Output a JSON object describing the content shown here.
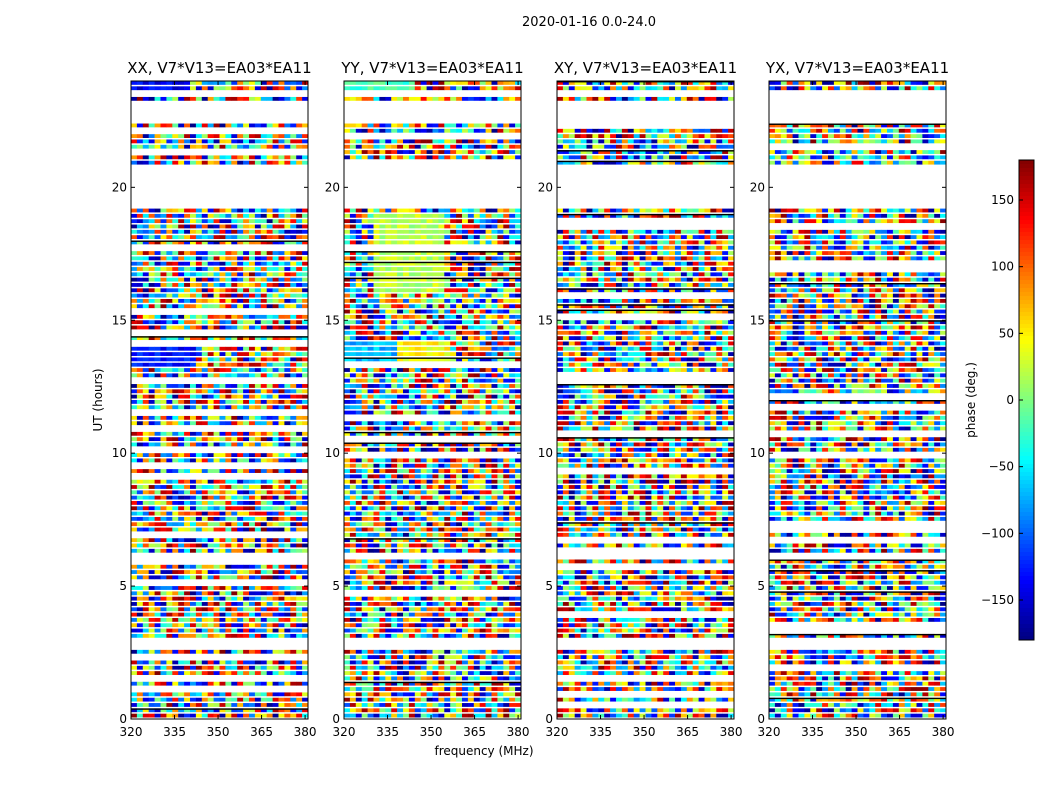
{
  "chart_data": {
    "type": "heatmap",
    "suptitle": "2020-01-16 0.0-24.0",
    "xlabel": "frequency (MHz)",
    "ylabel": "UT (hours)",
    "xlim": [
      320,
      381
    ],
    "ylim": [
      0,
      24
    ],
    "xticks": [
      320,
      335,
      350,
      365,
      380
    ],
    "yticks": [
      0,
      5,
      10,
      15,
      20
    ],
    "colorbar": {
      "label": "phase (deg.)",
      "range": [
        -180,
        180
      ],
      "ticks": [
        150,
        100,
        50,
        0,
        -50,
        -100,
        -150
      ],
      "tick_labels": [
        "150",
        "100",
        "50",
        "0",
        "−50",
        "−100",
        "−150"
      ],
      "colormap": [
        "#00007f",
        "#0000ff",
        "#007fff",
        "#00ffff",
        "#7fff7f",
        "#ffff00",
        "#ff7f00",
        "#ff0000",
        "#7f0000"
      ]
    },
    "panels": [
      {
        "title": "XX, V7*V13=EA03*EA11",
        "pol": "XX"
      },
      {
        "title": "YY, V7*V13=EA03*EA11",
        "pol": "YY"
      },
      {
        "title": "XY, V7*V13=EA03*EA11",
        "pol": "XY"
      },
      {
        "title": "YX, V7*V13=EA03*EA11",
        "pol": "YX"
      }
    ],
    "flagged_gaps_hours": [
      [
        0.55,
        0.7
      ],
      [
        2.7,
        3.0
      ],
      [
        6.0,
        6.2
      ],
      [
        19.2,
        20.8
      ],
      [
        22.4,
        23.2
      ],
      [
        23.5,
        23.6
      ]
    ],
    "coherent_bands": [
      {
        "pol": "XX",
        "t0": 13.2,
        "t1": 14.1,
        "f0": 320,
        "f1": 343,
        "phase_deg": -130
      },
      {
        "pol": "XX",
        "t0": 23.7,
        "t1": 24.0,
        "f0": 320,
        "f1": 340,
        "phase_deg": -140
      },
      {
        "pol": "YY",
        "t0": 13.2,
        "t1": 14.1,
        "f0": 320,
        "f1": 338,
        "phase_deg": -70
      },
      {
        "pol": "YY",
        "t0": 13.2,
        "t1": 14.1,
        "f0": 338,
        "f1": 356,
        "phase_deg": 45
      },
      {
        "pol": "YY",
        "t0": 23.7,
        "t1": 24.0,
        "f0": 320,
        "f1": 345,
        "phase_deg": -20
      },
      {
        "pol": "YY",
        "t0": 16.0,
        "t1": 19.0,
        "f0": 330,
        "f1": 355,
        "phase_deg": 20
      }
    ]
  }
}
